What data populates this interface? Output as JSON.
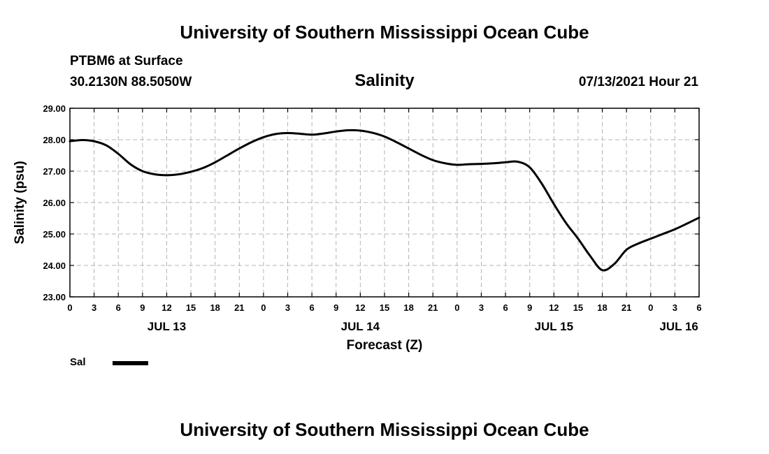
{
  "header": {
    "top_title": "University of Southern Mississippi Ocean Cube",
    "station": "PTBM6 at Surface",
    "coords": "30.2130N  88.5050W",
    "timestamp": "07/13/2021 Hour 21"
  },
  "footer": {
    "bottom_title": "University of Southern Mississippi Ocean Cube"
  },
  "legend": {
    "label": "Sal",
    "line_color": "#000000"
  },
  "chart_data": {
    "type": "line",
    "title": "Salinity",
    "xlabel": "Forecast (Z)",
    "ylabel": "Salinity (psu)",
    "ylim": [
      23.0,
      29.0
    ],
    "y_ticks": [
      "23.00",
      "24.00",
      "25.00",
      "26.00",
      "27.00",
      "28.00",
      "29.00"
    ],
    "x_range_hours": [
      0,
      78
    ],
    "x_ticks": [
      {
        "h": 0,
        "label": "0"
      },
      {
        "h": 3,
        "label": "3"
      },
      {
        "h": 6,
        "label": "6"
      },
      {
        "h": 9,
        "label": "9"
      },
      {
        "h": 12,
        "label": "12"
      },
      {
        "h": 15,
        "label": "15"
      },
      {
        "h": 18,
        "label": "18"
      },
      {
        "h": 21,
        "label": "21"
      },
      {
        "h": 24,
        "label": "0"
      },
      {
        "h": 27,
        "label": "3"
      },
      {
        "h": 30,
        "label": "6"
      },
      {
        "h": 33,
        "label": "9"
      },
      {
        "h": 36,
        "label": "12"
      },
      {
        "h": 39,
        "label": "15"
      },
      {
        "h": 42,
        "label": "18"
      },
      {
        "h": 45,
        "label": "21"
      },
      {
        "h": 48,
        "label": "0"
      },
      {
        "h": 51,
        "label": "3"
      },
      {
        "h": 54,
        "label": "6"
      },
      {
        "h": 57,
        "label": "9"
      },
      {
        "h": 60,
        "label": "12"
      },
      {
        "h": 63,
        "label": "15"
      },
      {
        "h": 66,
        "label": "18"
      },
      {
        "h": 69,
        "label": "21"
      },
      {
        "h": 72,
        "label": "0"
      },
      {
        "h": 75,
        "label": "3"
      },
      {
        "h": 78,
        "label": "6"
      }
    ],
    "day_labels": [
      {
        "h": 12,
        "label": "JUL 13"
      },
      {
        "h": 36,
        "label": "JUL 14"
      },
      {
        "h": 60,
        "label": "JUL 15"
      },
      {
        "h": 75.5,
        "label": "JUL 16"
      }
    ],
    "grid": true,
    "series": [
      {
        "name": "Sal",
        "x_hours": [
          0,
          1.5,
          3,
          4.5,
          6,
          7.5,
          9,
          10.5,
          12,
          13.5,
          15,
          16.5,
          18,
          19.5,
          21,
          22.5,
          24,
          25.5,
          27,
          28.5,
          30,
          31.5,
          33,
          34.5,
          36,
          37.5,
          39,
          40.5,
          42,
          43.5,
          45,
          46.5,
          48,
          49.5,
          51,
          52.5,
          54,
          55.5,
          57,
          58.5,
          60,
          61.5,
          63,
          64.5,
          66,
          67.5,
          69,
          70.5,
          72,
          73.5,
          75,
          76.5,
          78
        ],
        "values": [
          27.95,
          27.99,
          27.95,
          27.82,
          27.55,
          27.22,
          27.0,
          26.9,
          26.87,
          26.9,
          26.98,
          27.1,
          27.28,
          27.5,
          27.72,
          27.92,
          28.08,
          28.18,
          28.21,
          28.19,
          28.16,
          28.2,
          28.26,
          28.3,
          28.29,
          28.22,
          28.1,
          27.92,
          27.72,
          27.52,
          27.35,
          27.25,
          27.2,
          27.22,
          27.23,
          27.25,
          27.28,
          27.3,
          27.12,
          26.6,
          25.95,
          25.35,
          24.85,
          24.3,
          23.85,
          24.05,
          24.5,
          24.7,
          24.85,
          25.0,
          25.15,
          25.33,
          25.52
        ]
      }
    ]
  }
}
